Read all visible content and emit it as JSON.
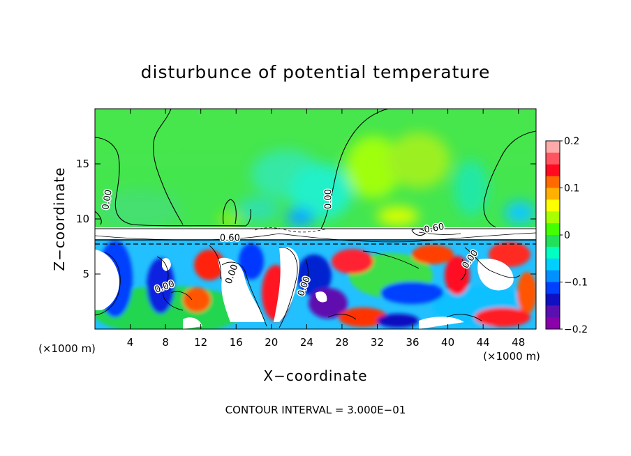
{
  "chart_data": {
    "type": "heatmap",
    "title": "disturbunce of potential temperature",
    "xlabel": "X−coordinate",
    "ylabel": "Z−coordinate",
    "x_unit_left": "(×1000 m)",
    "x_unit_right": "(×1000 m)",
    "footer": "CONTOUR INTERVAL = 3.000E−01",
    "xlim": [
      0,
      50
    ],
    "ylim": [
      0,
      20
    ],
    "x_ticks": [
      4,
      8,
      12,
      16,
      20,
      24,
      28,
      32,
      36,
      40,
      44,
      48
    ],
    "y_ticks": [
      5,
      10,
      15
    ],
    "grid": false,
    "legend_position": "right",
    "colorbar": {
      "min": -0.2,
      "max": 0.2,
      "tick_values": [
        0.2,
        0.1,
        0,
        -0.1,
        -0.2
      ],
      "tick_labels": [
        "0.2",
        "0.1",
        "0",
        "−0.1",
        "−0.2"
      ],
      "colors": [
        "#ffaaaa",
        "#ff5560",
        "#ff0a20",
        "#ff6a00",
        "#ffb000",
        "#ffff00",
        "#a8ff00",
        "#44ff00",
        "#22e05a",
        "#00ffc0",
        "#00d0ff",
        "#0090ff",
        "#0040ff",
        "#1010c0",
        "#5a10b0",
        "#8a00aa"
      ]
    },
    "contour_labels": [
      {
        "x": 1.7,
        "z": 11.7,
        "text": "0.00",
        "angle": -80
      },
      {
        "x": 8.0,
        "z": 3.6,
        "text": "0.00",
        "angle": -20
      },
      {
        "x": 15.8,
        "z": 4.9,
        "text": "0.00",
        "angle": -70
      },
      {
        "x": 24.0,
        "z": 3.8,
        "text": "0.00",
        "angle": -70
      },
      {
        "x": 26.8,
        "z": 11.8,
        "text": "0.00",
        "angle": -90
      },
      {
        "x": 42.8,
        "z": 6.2,
        "text": "0.00",
        "angle": -55
      },
      {
        "x": 15.3,
        "z": 8.0,
        "text": "0.60",
        "angle": 0
      },
      {
        "x": 38.5,
        "z": 8.9,
        "text": "0.60",
        "angle": -10
      }
    ]
  }
}
